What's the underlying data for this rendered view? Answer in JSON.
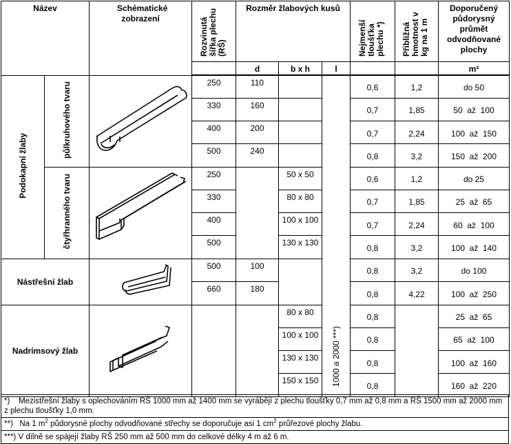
{
  "header": {
    "nazev": "Název",
    "schema": "Schématické zobrazení",
    "rs": "Rozvinutá šířka plechu (RŠ)",
    "rozmer": "Rozměr žlabových kusů",
    "d": "d",
    "bxh": "b x h",
    "l": "l",
    "tloustka": "Nejmenší tloušťka plechu *)",
    "hmotnost": "Přibližná hmotnost v kg na 1 m",
    "prumet": "Doporučený půdorysný průmět odvodňované plochy",
    "m2": "m²"
  },
  "groups": {
    "podokapni": "Podokapní žlaby",
    "pulkruh": "půlkruhového tvaru",
    "ctyrhran": "čtyřhranného tvaru",
    "nastresni": "Nástřešní žlab",
    "nadrimsovy": "Nadrímsový žlab",
    "l_value": "1000  a  2000 ***)"
  },
  "rows": [
    {
      "rs": "250",
      "d": "110",
      "bxh": "",
      "t": "0,6",
      "kg": "1,2",
      "area": "do 50"
    },
    {
      "rs": "330",
      "d": "160",
      "bxh": "",
      "t": "0,7",
      "kg": "1,85",
      "area": "50  až  100"
    },
    {
      "rs": "400",
      "d": "200",
      "bxh": "",
      "t": "0,7",
      "kg": "2,24",
      "area": "100  až  150"
    },
    {
      "rs": "500",
      "d": "240",
      "bxh": "",
      "t": "0,8",
      "kg": "3,2",
      "area": "150  až  200"
    },
    {
      "rs": "250",
      "d": "",
      "bxh": "50 x 50",
      "t": "0,6",
      "kg": "1,2",
      "area": "do 25"
    },
    {
      "rs": "330",
      "d": "",
      "bxh": "80 x 80",
      "t": "0,7",
      "kg": "1,85",
      "area": "25  až  65"
    },
    {
      "rs": "400",
      "d": "",
      "bxh": "100 x 100",
      "t": "0,7",
      "kg": "2,24",
      "area": "60  až  100"
    },
    {
      "rs": "500",
      "d": "",
      "bxh": "130 x 130",
      "t": "0,8",
      "kg": "3,2",
      "area": "100  až  140"
    },
    {
      "rs": "500",
      "d": "100",
      "bxh": "",
      "t": "0,8",
      "kg": "3,2",
      "area": "do 100"
    },
    {
      "rs": "660",
      "d": "180",
      "bxh": "",
      "t": "0,8",
      "kg": "4,22",
      "area": "100  až  250"
    },
    {
      "rs": "",
      "d": "",
      "bxh": "80 x 80",
      "t": "0,8",
      "kg": "",
      "area": "25  až  65"
    },
    {
      "rs": "",
      "d": "",
      "bxh": "100 x 100",
      "t": "0,8",
      "kg": "",
      "area": "65  až  100"
    },
    {
      "rs": "",
      "d": "",
      "bxh": "130 x 130",
      "t": "0,8",
      "kg": "",
      "area": "100  až  160"
    },
    {
      "rs": "",
      "d": "",
      "bxh": "150 x 150",
      "t": "0,8",
      "kg": "",
      "area": "160  až  220"
    }
  ],
  "notes": {
    "n1_mark": "*)",
    "n1": "Mezistřešní žlaby s oplechováním RŠ 1000 mm až 1400 mm se vyrábějí z plechu tloušťky 0,7 mm až 0,8 mm a RŠ 1500 mm až 2000 mm z plechu tloušťky 1,0 mm.",
    "n2_mark": "**)",
    "n2_a": "Na 1 m",
    "n2_b": " půdorysné plochy odvodňované střechy se doporučuje asi 1 cm",
    "n2_c": " průřezové plochy žlabu.",
    "sq": "2",
    "n3_mark": "***)",
    "n3": "V dílně se spájejí žlaby RŠ 250 mm až 500 mm do celkové délky 4 m až 6 m."
  }
}
